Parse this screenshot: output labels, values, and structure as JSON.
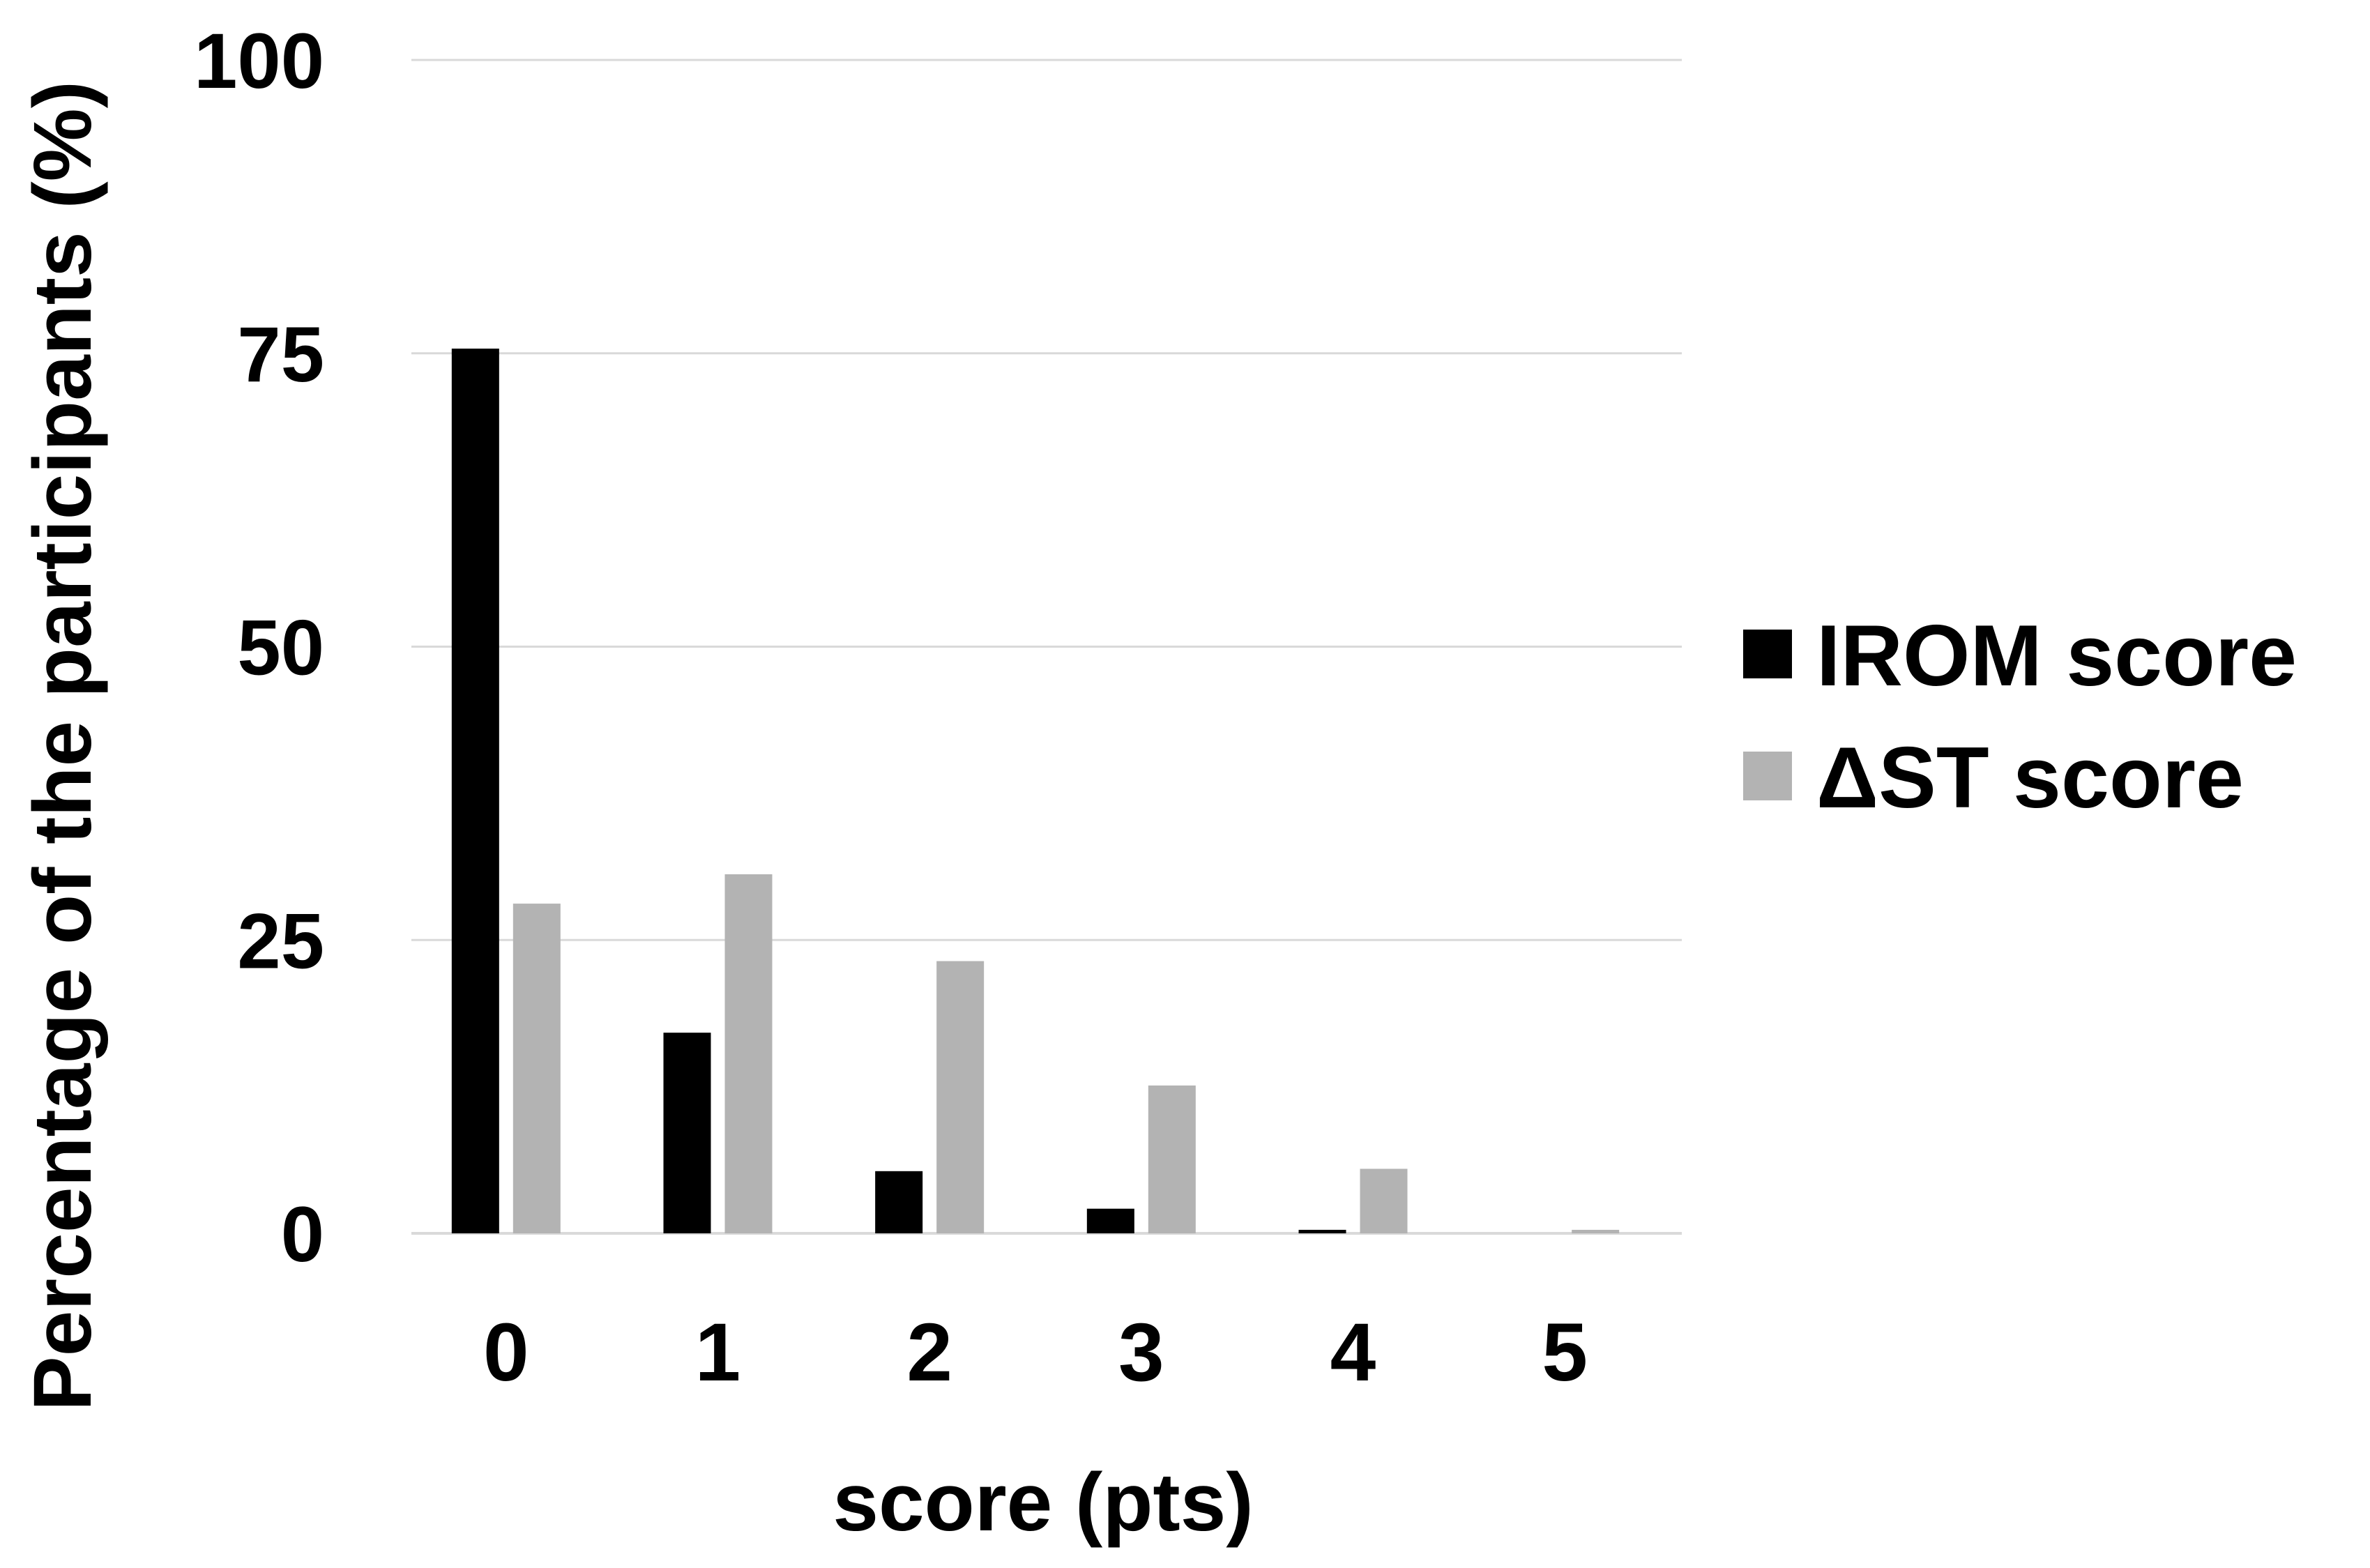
{
  "chart_data": {
    "type": "bar",
    "categories": [
      "0",
      "1",
      "2",
      "3",
      "4",
      "5"
    ],
    "series": [
      {
        "name": "IROM score",
        "color": "#000000",
        "values": [
          75.4,
          17.1,
          5.3,
          2.1,
          0.3,
          0.0
        ]
      },
      {
        "name": "ΔST score",
        "color": "#b3b3b3",
        "values": [
          28.1,
          30.6,
          23.2,
          12.6,
          5.5,
          0.3
        ]
      }
    ],
    "xlabel": "score (pts)",
    "ylabel": "Percentage of the participants (%)",
    "ylim": [
      0,
      100
    ],
    "yticks": [
      "0",
      "25",
      "50",
      "75",
      "100"
    ],
    "grid": true,
    "legend_position": "right"
  }
}
